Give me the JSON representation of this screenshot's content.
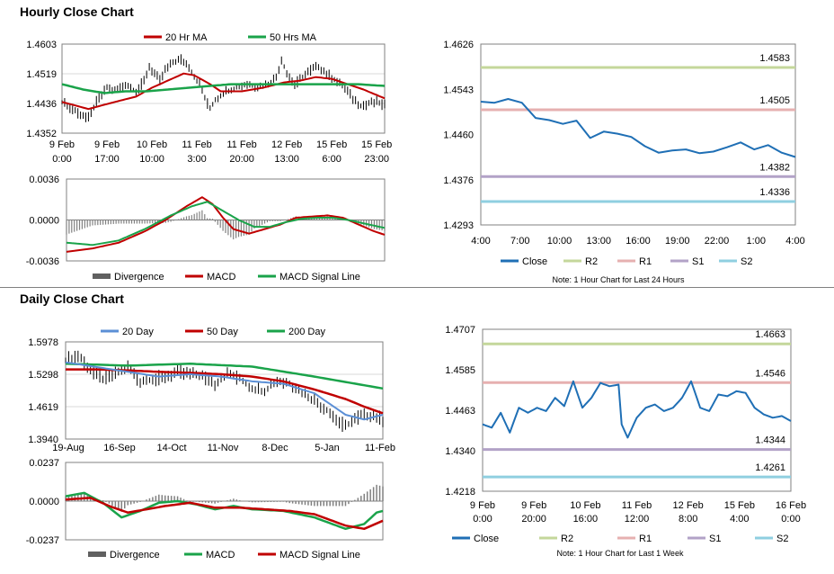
{
  "sections": {
    "hourly_title": "Hourly Close Chart",
    "daily_title": "Daily Close Chart"
  },
  "colors": {
    "price": "#000000",
    "red": "#c00000",
    "green": "#1aa34a",
    "blue": "#1f6fb5",
    "light_blue": "#5b8fd6",
    "r2": "#c4d79b",
    "r1": "#e6b0b0",
    "s1": "#b2a2c7",
    "s2": "#8fcfe0",
    "bar": "#808080"
  },
  "chart_data": [
    {
      "id": "hourly_price",
      "type": "line",
      "ylim": [
        1.4352,
        1.4603
      ],
      "yticks": [
        "1.4603",
        "1.4519",
        "1.4436",
        "1.4352"
      ],
      "xticks": [
        {
          "l1": "9 Feb",
          "l2": "0:00",
          "t": 0
        },
        {
          "l1": "9 Feb",
          "l2": "17:00",
          "t": 17
        },
        {
          "l1": "10 Feb",
          "l2": "10:00",
          "t": 34
        },
        {
          "l1": "11 Feb",
          "l2": "3:00",
          "t": 51
        },
        {
          "l1": "11 Feb",
          "l2": "20:00",
          "t": 68
        },
        {
          "l1": "12 Feb",
          "l2": "13:00",
          "t": 85
        },
        {
          "l1": "15 Feb",
          "l2": "6:00",
          "t": 102
        },
        {
          "l1": "15 Feb",
          "l2": "23:00",
          "t": 119
        }
      ],
      "legend": [
        "20 Hr MA",
        "50 Hrs MA"
      ],
      "price_keys": [
        [
          0,
          1.444
        ],
        [
          6,
          1.441
        ],
        [
          10,
          1.4395
        ],
        [
          13,
          1.444
        ],
        [
          17,
          1.448
        ],
        [
          20,
          1.447
        ],
        [
          24,
          1.449
        ],
        [
          28,
          1.447
        ],
        [
          31,
          1.45
        ],
        [
          33,
          1.454
        ],
        [
          35,
          1.452
        ],
        [
          37,
          1.45
        ],
        [
          39,
          1.453
        ],
        [
          42,
          1.455
        ],
        [
          45,
          1.456
        ],
        [
          48,
          1.454
        ],
        [
          50,
          1.451
        ],
        [
          52,
          1.449
        ],
        [
          54,
          1.445
        ],
        [
          56,
          1.442
        ],
        [
          58,
          1.4445
        ],
        [
          62,
          1.447
        ],
        [
          66,
          1.448
        ],
        [
          70,
          1.449
        ],
        [
          74,
          1.448
        ],
        [
          78,
          1.449
        ],
        [
          81,
          1.451
        ],
        [
          83,
          1.456
        ],
        [
          85,
          1.452
        ],
        [
          88,
          1.449
        ],
        [
          91,
          1.451
        ],
        [
          94,
          1.453
        ],
        [
          97,
          1.454
        ],
        [
          100,
          1.452
        ],
        [
          102,
          1.451
        ],
        [
          105,
          1.449
        ],
        [
          108,
          1.447
        ],
        [
          110,
          1.445
        ],
        [
          113,
          1.443
        ],
        [
          116,
          1.4435
        ],
        [
          119,
          1.444
        ],
        [
          122,
          1.443
        ]
      ],
      "ma20_keys": [
        [
          0,
          1.444
        ],
        [
          10,
          1.442
        ],
        [
          20,
          1.444
        ],
        [
          28,
          1.4455
        ],
        [
          34,
          1.448
        ],
        [
          40,
          1.45
        ],
        [
          46,
          1.452
        ],
        [
          50,
          1.4515
        ],
        [
          56,
          1.449
        ],
        [
          60,
          1.447
        ],
        [
          68,
          1.447
        ],
        [
          76,
          1.448
        ],
        [
          84,
          1.4495
        ],
        [
          90,
          1.45
        ],
        [
          96,
          1.451
        ],
        [
          102,
          1.4505
        ],
        [
          108,
          1.449
        ],
        [
          114,
          1.4475
        ],
        [
          122,
          1.445
        ]
      ],
      "ma50_keys": [
        [
          0,
          1.449
        ],
        [
          8,
          1.4475
        ],
        [
          16,
          1.4465
        ],
        [
          24,
          1.447
        ],
        [
          32,
          1.447
        ],
        [
          40,
          1.4475
        ],
        [
          48,
          1.448
        ],
        [
          56,
          1.4485
        ],
        [
          64,
          1.449
        ],
        [
          72,
          1.449
        ],
        [
          80,
          1.449
        ],
        [
          88,
          1.449
        ],
        [
          96,
          1.449
        ],
        [
          104,
          1.449
        ],
        [
          112,
          1.449
        ],
        [
          122,
          1.4485
        ]
      ]
    },
    {
      "id": "hourly_macd",
      "type": "line",
      "ylim": [
        -0.0036,
        0.0036
      ],
      "yticks": [
        "0.0036",
        "0.0000",
        "-0.0036"
      ],
      "legend": [
        "Divergence",
        "MACD",
        "MACD Signal Line"
      ],
      "macd_keys": [
        [
          0,
          -0.0028
        ],
        [
          10,
          -0.0025
        ],
        [
          20,
          -0.002
        ],
        [
          30,
          -0.001
        ],
        [
          38,
          0.0
        ],
        [
          46,
          0.0012
        ],
        [
          52,
          0.002
        ],
        [
          56,
          0.0014
        ],
        [
          60,
          0.0002
        ],
        [
          64,
          -0.0008
        ],
        [
          70,
          -0.0012
        ],
        [
          76,
          -0.0008
        ],
        [
          82,
          -0.0004
        ],
        [
          88,
          0.0002
        ],
        [
          94,
          0.0003
        ],
        [
          100,
          0.0004
        ],
        [
          106,
          0.0002
        ],
        [
          112,
          -0.0004
        ],
        [
          118,
          -0.001
        ],
        [
          122,
          -0.0013
        ]
      ],
      "signal_keys": [
        [
          0,
          -0.002
        ],
        [
          10,
          -0.0022
        ],
        [
          20,
          -0.0018
        ],
        [
          30,
          -0.0008
        ],
        [
          40,
          0.0004
        ],
        [
          48,
          0.0012
        ],
        [
          54,
          0.0016
        ],
        [
          60,
          0.0008
        ],
        [
          66,
          0.0
        ],
        [
          72,
          -0.0006
        ],
        [
          78,
          -0.0006
        ],
        [
          84,
          -0.0002
        ],
        [
          90,
          0.0001
        ],
        [
          96,
          0.0002
        ],
        [
          102,
          0.0002
        ],
        [
          108,
          0.0
        ],
        [
          114,
          -0.0003
        ],
        [
          122,
          -0.0007
        ]
      ]
    },
    {
      "id": "hourly_pivot",
      "type": "line",
      "ylim": [
        1.4293,
        1.4626
      ],
      "yticks": [
        "1.4626",
        "1.4543",
        "1.4460",
        "1.4376",
        "1.4293"
      ],
      "xticks": [
        "4:00",
        "7:00",
        "10:00",
        "13:00",
        "16:00",
        "19:00",
        "22:00",
        "1:00",
        "4:00"
      ],
      "legend": [
        "Close",
        "R2",
        "R1",
        "S1",
        "S2"
      ],
      "levels": {
        "r2": "1.4583",
        "r1": "1.4505",
        "s1": "1.4382",
        "s2": "1.4336"
      },
      "close": [
        1.452,
        1.4518,
        1.4525,
        1.4518,
        1.449,
        1.4486,
        1.4479,
        1.4485,
        1.4453,
        1.4465,
        1.4461,
        1.4455,
        1.4438,
        1.4426,
        1.443,
        1.4432,
        1.4425,
        1.4428,
        1.4436,
        1.4445,
        1.4432,
        1.444,
        1.4426,
        1.4418
      ],
      "note": "Note: 1 Hour Chart for Last 24 Hours"
    },
    {
      "id": "daily_price",
      "type": "line",
      "ylim": [
        1.394,
        1.5978
      ],
      "yticks": [
        "1.5978",
        "1.5298",
        "1.4619",
        "1.3940"
      ],
      "xticks": [
        "19-Aug",
        "16-Sep",
        "14-Oct",
        "11-Nov",
        "8-Dec",
        "5-Jan",
        "11-Feb"
      ],
      "legend": [
        "20 Day",
        "50 Day",
        "200 Day"
      ],
      "price_keys": [
        [
          0,
          1.56
        ],
        [
          4,
          1.57
        ],
        [
          8,
          1.54
        ],
        [
          12,
          1.52
        ],
        [
          16,
          1.53
        ],
        [
          20,
          1.545
        ],
        [
          24,
          1.515
        ],
        [
          28,
          1.52
        ],
        [
          32,
          1.525
        ],
        [
          36,
          1.535
        ],
        [
          40,
          1.53
        ],
        [
          44,
          1.525
        ],
        [
          48,
          1.51
        ],
        [
          52,
          1.53
        ],
        [
          56,
          1.52
        ],
        [
          60,
          1.5
        ],
        [
          64,
          1.495
        ],
        [
          68,
          1.515
        ],
        [
          72,
          1.51
        ],
        [
          76,
          1.49
        ],
        [
          80,
          1.475
        ],
        [
          84,
          1.455
        ],
        [
          88,
          1.43
        ],
        [
          90,
          1.42
        ],
        [
          94,
          1.44
        ],
        [
          98,
          1.445
        ],
        [
          102,
          1.435
        ]
      ],
      "ma20_keys": [
        [
          0,
          1.555
        ],
        [
          10,
          1.545
        ],
        [
          20,
          1.535
        ],
        [
          30,
          1.525
        ],
        [
          40,
          1.53
        ],
        [
          50,
          1.525
        ],
        [
          60,
          1.515
        ],
        [
          70,
          1.51
        ],
        [
          80,
          1.49
        ],
        [
          90,
          1.445
        ],
        [
          96,
          1.435
        ],
        [
          102,
          1.445
        ]
      ],
      "ma50_keys": [
        [
          0,
          1.54
        ],
        [
          10,
          1.54
        ],
        [
          20,
          1.538
        ],
        [
          30,
          1.535
        ],
        [
          40,
          1.533
        ],
        [
          50,
          1.53
        ],
        [
          60,
          1.525
        ],
        [
          70,
          1.515
        ],
        [
          80,
          1.498
        ],
        [
          90,
          1.478
        ],
        [
          96,
          1.462
        ],
        [
          102,
          1.448
        ]
      ],
      "ma200_keys": [
        [
          0,
          1.552
        ],
        [
          20,
          1.548
        ],
        [
          40,
          1.552
        ],
        [
          60,
          1.546
        ],
        [
          80,
          1.525
        ],
        [
          102,
          1.5
        ]
      ]
    },
    {
      "id": "daily_macd",
      "type": "line",
      "ylim": [
        -0.0237,
        0.0237
      ],
      "yticks": [
        "0.0237",
        "0.0000",
        "-0.0237"
      ],
      "legend": [
        "Divergence",
        "MACD",
        "MACD Signal Line"
      ],
      "macd_keys": [
        [
          0,
          0.003
        ],
        [
          6,
          0.005
        ],
        [
          12,
          -0.001
        ],
        [
          18,
          -0.01
        ],
        [
          24,
          -0.006
        ],
        [
          30,
          -0.001
        ],
        [
          36,
          0.0
        ],
        [
          42,
          -0.002
        ],
        [
          48,
          -0.005
        ],
        [
          54,
          -0.003
        ],
        [
          60,
          -0.005
        ],
        [
          70,
          -0.006
        ],
        [
          80,
          -0.01
        ],
        [
          90,
          -0.017
        ],
        [
          96,
          -0.014
        ],
        [
          100,
          -0.007
        ],
        [
          102,
          -0.006
        ]
      ],
      "signal_keys": [
        [
          0,
          0.001
        ],
        [
          8,
          0.002
        ],
        [
          14,
          -0.003
        ],
        [
          20,
          -0.007
        ],
        [
          26,
          -0.005
        ],
        [
          32,
          -0.003
        ],
        [
          40,
          -0.001
        ],
        [
          48,
          -0.004
        ],
        [
          56,
          -0.004
        ],
        [
          64,
          -0.005
        ],
        [
          72,
          -0.006
        ],
        [
          80,
          -0.008
        ],
        [
          90,
          -0.015
        ],
        [
          96,
          -0.017
        ],
        [
          102,
          -0.012
        ]
      ]
    },
    {
      "id": "daily_pivot",
      "type": "line",
      "ylim": [
        1.4218,
        1.4707
      ],
      "yticks": [
        "1.4707",
        "1.4585",
        "1.4463",
        "1.4340",
        "1.4218"
      ],
      "xticks": [
        {
          "l1": "9 Feb",
          "l2": "0:00"
        },
        {
          "l1": "9 Feb",
          "l2": "20:00"
        },
        {
          "l1": "10 Feb",
          "l2": "16:00"
        },
        {
          "l1": "11 Feb",
          "l2": "12:00"
        },
        {
          "l1": "12 Feb",
          "l2": "8:00"
        },
        {
          "l1": "15 Feb",
          "l2": "4:00"
        },
        {
          "l1": "16 Feb",
          "l2": "0:00"
        }
      ],
      "legend": [
        "Close",
        "R2",
        "R1",
        "S1",
        "S2"
      ],
      "levels": {
        "r2": "1.4663",
        "r1": "1.4546",
        "s1": "1.4344",
        "s2": "1.4261"
      },
      "close_keys": [
        [
          0,
          1.442
        ],
        [
          3,
          1.441
        ],
        [
          6,
          1.4455
        ],
        [
          9,
          1.4395
        ],
        [
          12,
          1.447
        ],
        [
          15,
          1.4455
        ],
        [
          18,
          1.447
        ],
        [
          21,
          1.446
        ],
        [
          24,
          1.45
        ],
        [
          27,
          1.4475
        ],
        [
          30,
          1.455
        ],
        [
          33,
          1.447
        ],
        [
          36,
          1.45
        ],
        [
          39,
          1.4545
        ],
        [
          42,
          1.4535
        ],
        [
          45,
          1.454
        ],
        [
          46,
          1.442
        ],
        [
          48,
          1.438
        ],
        [
          51,
          1.444
        ],
        [
          54,
          1.447
        ],
        [
          57,
          1.448
        ],
        [
          60,
          1.446
        ],
        [
          63,
          1.447
        ],
        [
          66,
          1.45
        ],
        [
          69,
          1.455
        ],
        [
          72,
          1.447
        ],
        [
          75,
          1.446
        ],
        [
          78,
          1.451
        ],
        [
          81,
          1.4505
        ],
        [
          84,
          1.452
        ],
        [
          87,
          1.4515
        ],
        [
          90,
          1.447
        ],
        [
          93,
          1.445
        ],
        [
          96,
          1.444
        ],
        [
          99,
          1.4445
        ],
        [
          102,
          1.443
        ]
      ],
      "note": "Note: 1 Hour Chart for Last 1 Week"
    }
  ]
}
